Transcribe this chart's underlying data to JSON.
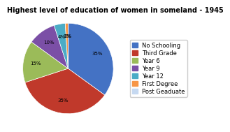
{
  "title": "Highest level of education of women in someland - 1945",
  "labels": [
    "No Schooling",
    "Third Grade",
    "Year 6",
    "Year 9",
    "Year 12",
    "First Degree",
    "Post Geaduate"
  ],
  "values": [
    35,
    35,
    15,
    10,
    4,
    1,
    0
  ],
  "colors": [
    "#4472c4",
    "#c0392b",
    "#9bbb59",
    "#7b4fa6",
    "#4bacc6",
    "#f79646",
    "#c6d9f1"
  ],
  "title_fontsize": 7,
  "legend_fontsize": 6,
  "background_color": "#ffffff"
}
